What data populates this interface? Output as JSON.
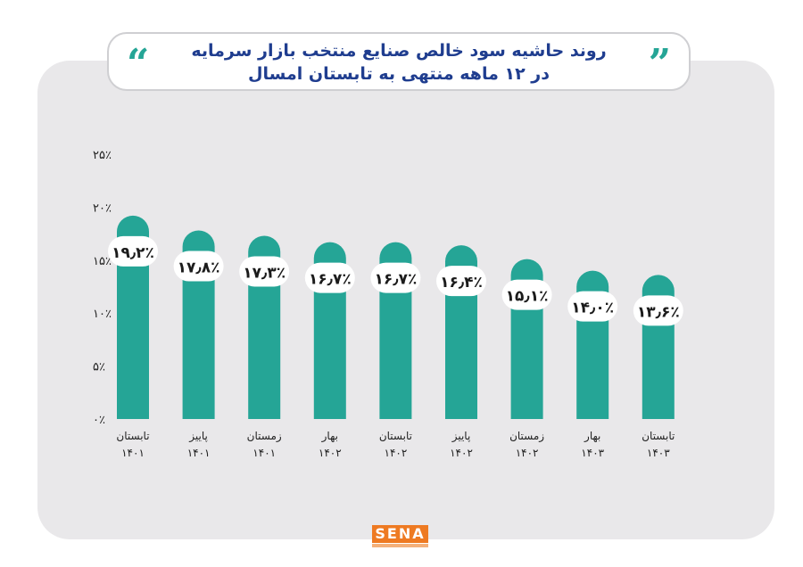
{
  "title": {
    "line1": "روند حاشیه سود خالص صنایع منتخب بازار سرمایه",
    "line2": "در ۱۲ ماهه منتهی به تابستان امسال"
  },
  "decor": {
    "quote_left": "“",
    "quote_right": "”",
    "bar_color": "#25a596",
    "title_color": "#1f3d8f",
    "card_color": "#e9e8ea"
  },
  "logo": {
    "text": "SENA"
  },
  "chart_data": {
    "type": "bar",
    "ylim": [
      0,
      25
    ],
    "yticks": [
      0,
      5,
      10,
      15,
      20,
      25
    ],
    "ytick_labels": [
      "۰٪",
      "۵٪",
      "۱۰٪",
      "۱۵٪",
      "۲۰٪",
      "۲۵٪"
    ],
    "categories": [
      [
        "تابستان",
        "۱۴۰۱"
      ],
      [
        "پاییز",
        "۱۴۰۱"
      ],
      [
        "زمستان",
        "۱۴۰۱"
      ],
      [
        "بهار",
        "۱۴۰۲"
      ],
      [
        "تابستان",
        "۱۴۰۲"
      ],
      [
        "پاییز",
        "۱۴۰۲"
      ],
      [
        "زمستان",
        "۱۴۰۲"
      ],
      [
        "بهار",
        "۱۴۰۳"
      ],
      [
        "تابستان",
        "۱۴۰۳"
      ]
    ],
    "values": [
      19.2,
      17.8,
      17.3,
      16.7,
      16.7,
      16.4,
      15.1,
      14.0,
      13.6
    ],
    "value_labels": [
      "۱۹٫۲٪",
      "۱۷٫۸٪",
      "۱۷٫۳٪",
      "۱۶٫۷٪",
      "۱۶٫۷٪",
      "۱۶٫۴٪",
      "۱۵٫۱٪",
      "۱۴٫۰٪",
      "۱۳٫۶٪"
    ],
    "grid": false,
    "legend": "none"
  }
}
